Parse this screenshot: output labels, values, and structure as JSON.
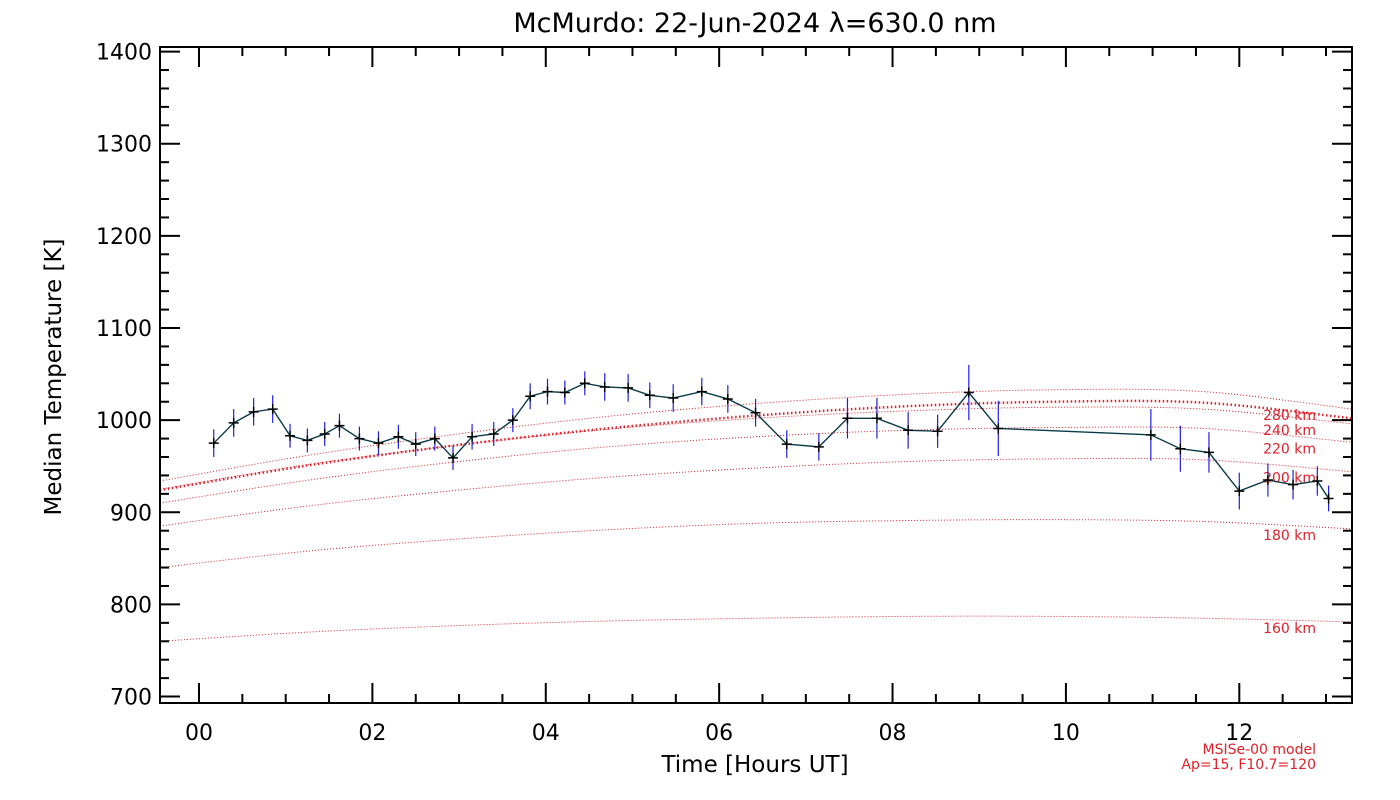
{
  "chart_data": {
    "type": "line",
    "title": "McMurdo: 22-Jun-2024 λ=630.0 nm",
    "xlabel": "Time [Hours UT]",
    "ylabel": "Median Temperature [K]",
    "xlim": [
      -0.45,
      13.3
    ],
    "ylim": [
      693,
      1405
    ],
    "xticks": [
      0,
      2,
      4,
      6,
      8,
      10,
      12
    ],
    "xtick_labels": [
      "00",
      "02",
      "04",
      "06",
      "08",
      "10",
      "12"
    ],
    "yticks": [
      700,
      800,
      900,
      1000,
      1100,
      1200,
      1300,
      1400
    ],
    "ytick_labels": [
      "700",
      "800",
      "900",
      "1000",
      "1100",
      "1200",
      "1300",
      "1400"
    ],
    "grid": false,
    "colors": {
      "data_line": "#0a3a4a",
      "error_bar": "#2020e0",
      "marker": "#000000",
      "model": "#e0202a"
    },
    "series": [
      {
        "name": "",
        "x": [
          0.17,
          0.4,
          0.63,
          0.85,
          1.05,
          1.25,
          1.45,
          1.62,
          1.85,
          2.07,
          2.3,
          2.5,
          2.72,
          2.93,
          3.15,
          3.4,
          3.62,
          3.82,
          4.02,
          4.22,
          4.45,
          4.68,
          4.95,
          5.2,
          5.47,
          5.8,
          6.1,
          6.42,
          6.78,
          7.15,
          7.48,
          7.82,
          8.18,
          8.52,
          8.88,
          9.22,
          10.98,
          11.32,
          11.65,
          12.0,
          12.33,
          12.62,
          12.9,
          13.03
        ],
        "values": [
          975,
          997,
          1009,
          1012,
          983,
          978,
          985,
          994,
          980,
          975,
          982,
          974,
          980,
          959,
          982,
          985,
          1000,
          1026,
          1031,
          1030,
          1040,
          1036,
          1035,
          1027,
          1024,
          1031,
          1023,
          1008,
          974,
          971,
          1002,
          1002,
          989,
          988,
          1030,
          991,
          984,
          969,
          965,
          923,
          935,
          930,
          934,
          915
        ],
        "errors": [
          15,
          15,
          15,
          15,
          13,
          13,
          13,
          13,
          13,
          13,
          13,
          13,
          13,
          13,
          14,
          13,
          13,
          14,
          14,
          13,
          13,
          15,
          15,
          14,
          15,
          15,
          15,
          15,
          15,
          15,
          22,
          22,
          20,
          18,
          30,
          30,
          28,
          25,
          22,
          20,
          18,
          16,
          16,
          14
        ]
      }
    ],
    "model": {
      "label_line1": "MSISe-00 model",
      "label_line2": "Ap=15, F10.7=120",
      "altitudes": [
        {
          "label": "160 km",
          "values": [
            760,
            770,
            777,
            782,
            785,
            787,
            787,
            785,
            781
          ]
        },
        {
          "label": "180 km",
          "values": [
            840,
            858,
            871,
            881,
            888,
            891,
            892,
            890,
            882
          ]
        },
        {
          "label": "200 km",
          "values": [
            885,
            907,
            924,
            938,
            948,
            955,
            958,
            957,
            944
          ]
        },
        {
          "label": "220 km",
          "values": [
            910,
            935,
            955,
            971,
            982,
            989,
            992,
            991,
            976
          ]
        },
        {
          "label": "240 km",
          "values": [
            925,
            952,
            973,
            990,
            1002,
            1010,
            1014,
            1012,
            996
          ]
        },
        {
          "label": "280 km",
          "values": [
            934,
            962,
            985,
            1004,
            1018,
            1028,
            1033,
            1031,
            1012
          ]
        }
      ],
      "highlight": {
        "values": [
          924,
          951,
          973,
          991,
          1005,
          1015,
          1020,
          1019,
          1002
        ]
      }
    }
  }
}
